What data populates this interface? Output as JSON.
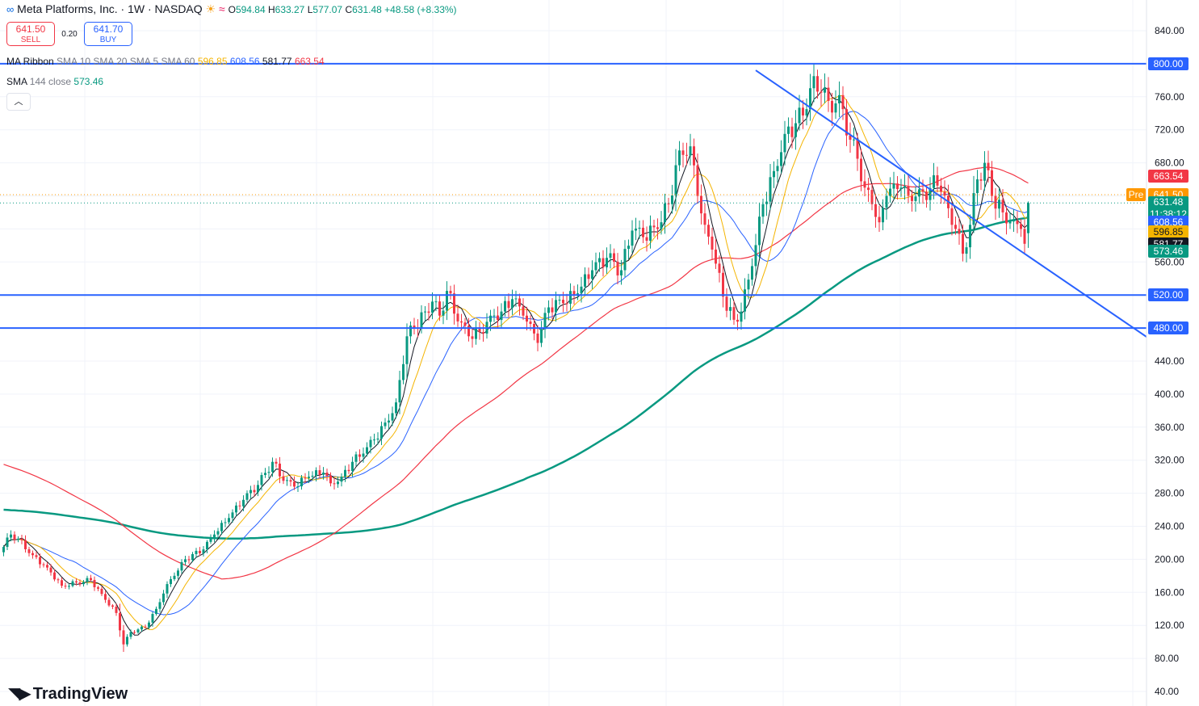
{
  "header": {
    "symbol_title": "Meta Platforms, Inc. · 1W · NASDAQ",
    "ohlc": {
      "o_label": "O",
      "o": "594.84",
      "h_label": "H",
      "h": "633.27",
      "l_label": "L",
      "l": "577.07",
      "c_label": "C",
      "c": "631.48",
      "change": "+48.58 (+8.33%)"
    }
  },
  "trade": {
    "sell_price": "641.50",
    "sell_label": "SELL",
    "spread": "0.20",
    "buy_price": "641.70",
    "buy_label": "BUY"
  },
  "indicators": {
    "ribbon": {
      "name": "MA Ribbon",
      "params": "SMA 10 SMA 20 SMA 5 SMA 60",
      "values": [
        "596.85",
        "608.56",
        "581.77",
        "663.54"
      ]
    },
    "sma144": {
      "name": "SMA",
      "params": "144 close",
      "value": "573.46"
    }
  },
  "branding": {
    "logo_text": "TradingView"
  },
  "colors": {
    "up": "#089981",
    "down": "#f23645",
    "sma5": "#131722",
    "sma10": "#f4b400",
    "sma20": "#2962ff",
    "sma60": "#f23645",
    "sma144": "#089981",
    "level": "#2962ff",
    "pre": "#ff9800"
  },
  "price_tags": {
    "level_800": "800.00",
    "level_520": "520.00",
    "level_480": "480.00",
    "sma60": "663.54",
    "pre_label": "Pre",
    "pre_price": "641.50",
    "last_price": "631.48",
    "countdown": "11:38:12",
    "sma20": "608.56",
    "sma10": "596.85",
    "sma5": "581.77",
    "sma144": "573.46"
  },
  "chart_data": {
    "type": "candlestick",
    "timeframe": "1W",
    "y_axis": {
      "min": 40,
      "max": 840,
      "ticks": [
        40,
        80,
        120,
        160,
        200,
        240,
        280,
        320,
        360,
        400,
        440,
        480,
        520,
        560,
        600,
        640,
        680,
        720,
        760,
        800,
        840
      ],
      "tick_labels": [
        "40.00",
        "80.00",
        "120.00",
        "160.00",
        "200.00",
        "240.00",
        "280.00",
        "320.00",
        "360.00",
        "400.00",
        "440.00",
        "480.00",
        "520.00",
        "560.00",
        "600.00",
        "640.00",
        "680.00",
        "720.00",
        "760.00",
        "800.00",
        "840.00"
      ]
    },
    "horizontal_levels": [
      800,
      520,
      480
    ],
    "trendline": {
      "from": {
        "bar": 207,
        "price": 792
      },
      "to": {
        "bar": 282,
        "price": 567
      }
    },
    "waypoints_close": [
      [
        0,
        215
      ],
      [
        2,
        230
      ],
      [
        4,
        225
      ],
      [
        8,
        205
      ],
      [
        12,
        190
      ],
      [
        16,
        168
      ],
      [
        20,
        172
      ],
      [
        24,
        175
      ],
      [
        27,
        158
      ],
      [
        31,
        135
      ],
      [
        33,
        97
      ],
      [
        35,
        112
      ],
      [
        39,
        118
      ],
      [
        42,
        140
      ],
      [
        45,
        170
      ],
      [
        47,
        180
      ],
      [
        50,
        200
      ],
      [
        55,
        212
      ],
      [
        58,
        230
      ],
      [
        62,
        250
      ],
      [
        66,
        272
      ],
      [
        70,
        290
      ],
      [
        74,
        318
      ],
      [
        77,
        295
      ],
      [
        80,
        288
      ],
      [
        84,
        300
      ],
      [
        88,
        305
      ],
      [
        90,
        292
      ],
      [
        93,
        300
      ],
      [
        96,
        318
      ],
      [
        99,
        328
      ],
      [
        102,
        345
      ],
      [
        106,
        368
      ],
      [
        108,
        390
      ],
      [
        111,
        470
      ],
      [
        113,
        480
      ],
      [
        116,
        500
      ],
      [
        118,
        512
      ],
      [
        120,
        495
      ],
      [
        122,
        525
      ],
      [
        125,
        488
      ],
      [
        128,
        470
      ],
      [
        131,
        475
      ],
      [
        134,
        495
      ],
      [
        137,
        500
      ],
      [
        140,
        515
      ],
      [
        143,
        495
      ],
      [
        145,
        485
      ],
      [
        147,
        462
      ],
      [
        150,
        505
      ],
      [
        154,
        510
      ],
      [
        158,
        522
      ],
      [
        162,
        550
      ],
      [
        166,
        565
      ],
      [
        170,
        550
      ],
      [
        173,
        598
      ],
      [
        176,
        590
      ],
      [
        180,
        600
      ],
      [
        183,
        630
      ],
      [
        186,
        695
      ],
      [
        189,
        700
      ],
      [
        191,
        640
      ],
      [
        193,
        605
      ],
      [
        195,
        575
      ],
      [
        198,
        518
      ],
      [
        201,
        490
      ],
      [
        203,
        500
      ],
      [
        206,
        555
      ],
      [
        209,
        630
      ],
      [
        212,
        670
      ],
      [
        215,
        715
      ],
      [
        218,
        728
      ],
      [
        221,
        745
      ],
      [
        223,
        785
      ],
      [
        225,
        765
      ],
      [
        227,
        755
      ],
      [
        229,
        752
      ],
      [
        231,
        745
      ],
      [
        233,
        708
      ],
      [
        235,
        685
      ],
      [
        237,
        650
      ],
      [
        239,
        630
      ],
      [
        241,
        608
      ],
      [
        243,
        640
      ],
      [
        245,
        655
      ],
      [
        247,
        650
      ],
      [
        249,
        640
      ],
      [
        252,
        648
      ],
      [
        254,
        635
      ],
      [
        256,
        665
      ],
      [
        258,
        645
      ],
      [
        260,
        625
      ],
      [
        262,
        600
      ],
      [
        264,
        570
      ],
      [
        266,
        605
      ],
      [
        268,
        660
      ],
      [
        270,
        680
      ],
      [
        272,
        640
      ],
      [
        275,
        620
      ],
      [
        278,
        610
      ],
      [
        280,
        600
      ],
      [
        281,
        582
      ],
      [
        282,
        631.48
      ]
    ],
    "last_bar": {
      "open": 594.84,
      "high": 633.27,
      "low": 577.07,
      "close": 631.48
    },
    "series": [
      {
        "name": "SMA 5",
        "period": 5,
        "last": 581.77
      },
      {
        "name": "SMA 10",
        "period": 10,
        "last": 596.85
      },
      {
        "name": "SMA 20",
        "period": 20,
        "last": 608.56
      },
      {
        "name": "SMA 60",
        "period": 60,
        "last": 663.54
      },
      {
        "name": "SMA 144",
        "period": 144,
        "last": 573.46
      }
    ]
  }
}
